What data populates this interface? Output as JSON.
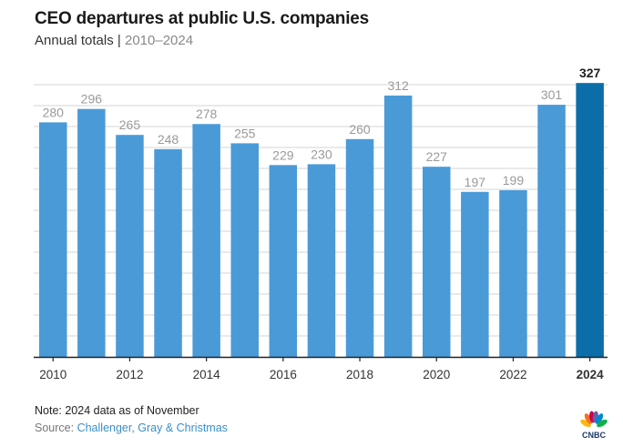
{
  "header": {
    "title": "CEO departures at public U.S. companies",
    "subtitle_label": "Annual totals",
    "subtitle_sep": "|",
    "subtitle_range": "2010–2024"
  },
  "footer": {
    "note": "Note: 2024 data as of November",
    "source_label": "Source:",
    "source_name": "Challenger, Gray & Christmas",
    "logo_text": "CNBC"
  },
  "colors": {
    "bar": "#4a9ad8",
    "highlight_bar": "#0b6ea8",
    "label": "#9a9a9a",
    "highlight_label": "#222222",
    "grid": "#d6d6d6",
    "axis": "#222222"
  },
  "chart_data": {
    "type": "bar",
    "title": "CEO departures at public U.S. companies",
    "subtitle": "Annual totals | 2010–2024",
    "categories": [
      "2010",
      "2011",
      "2012",
      "2013",
      "2014",
      "2015",
      "2016",
      "2017",
      "2018",
      "2019",
      "2020",
      "2021",
      "2022",
      "2023",
      "2024"
    ],
    "values": [
      280,
      296,
      265,
      248,
      278,
      255,
      229,
      230,
      260,
      312,
      227,
      197,
      199,
      301,
      327
    ],
    "highlight": "2024",
    "tick_labels": [
      "2010",
      "2012",
      "2014",
      "2016",
      "2018",
      "2020",
      "2022",
      "2024"
    ],
    "xlabel": "",
    "ylabel": "",
    "ylim": [
      0,
      325
    ],
    "grid": true,
    "grid_step": 25,
    "y_tick_labels_shown": false,
    "data_labels": true,
    "legend": "none",
    "note": "Note: 2024 data as of November",
    "source": "Source: Challenger, Gray & Christmas"
  }
}
